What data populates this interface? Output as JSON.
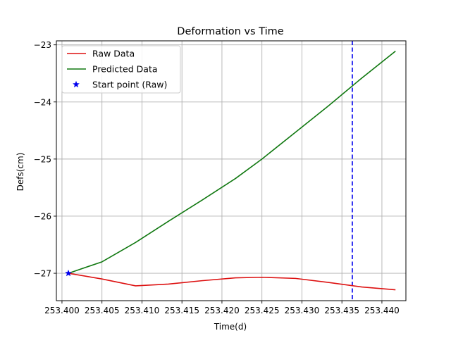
{
  "chart_data": {
    "type": "line",
    "title": "Deformation vs Time",
    "xlabel": "Time(d)",
    "ylabel": "Defs(cm)",
    "xlim": [
      253.3993,
      253.443
    ],
    "ylim": [
      -27.48,
      -22.93
    ],
    "xticks": [
      253.4,
      253.405,
      253.41,
      253.415,
      253.42,
      253.425,
      253.43,
      253.435,
      253.44
    ],
    "xtick_labels": [
      "253.400",
      "253.405",
      "253.410",
      "253.415",
      "253.420",
      "253.425",
      "253.430",
      "253.435",
      "253.440"
    ],
    "yticks": [
      -27,
      -26,
      -25,
      -24,
      -23
    ],
    "ytick_labels": [
      "−27",
      "−26",
      "−25",
      "−24",
      "−23"
    ],
    "grid": true,
    "legend_position": "top-left",
    "series": [
      {
        "name": "Raw Data",
        "color": "#dd1111",
        "style": "line",
        "x": [
          253.4008,
          253.405,
          253.4092,
          253.4133,
          253.4175,
          253.4217,
          253.425,
          253.4292,
          253.4333,
          253.4375,
          253.4417
        ],
        "y": [
          -27.0,
          -27.1,
          -27.22,
          -27.19,
          -27.13,
          -27.08,
          -27.07,
          -27.09,
          -27.16,
          -27.24,
          -27.29
        ]
      },
      {
        "name": "Predicted Data",
        "color": "#107810",
        "style": "line",
        "x": [
          253.4008,
          253.405,
          253.4092,
          253.4133,
          253.4175,
          253.4217,
          253.425,
          253.4292,
          253.4333,
          253.4375,
          253.4417
        ],
        "y": [
          -27.0,
          -26.8,
          -26.46,
          -26.09,
          -25.72,
          -25.34,
          -25.0,
          -24.53,
          -24.07,
          -23.58,
          -23.11
        ]
      },
      {
        "name": "Start point (Raw)",
        "color": "#0000ee",
        "style": "star-marker",
        "x": [
          253.4008
        ],
        "y": [
          -27.0
        ]
      }
    ],
    "vlines": [
      {
        "x": 253.4363,
        "color": "#0000ee",
        "style": "dashed"
      }
    ]
  }
}
